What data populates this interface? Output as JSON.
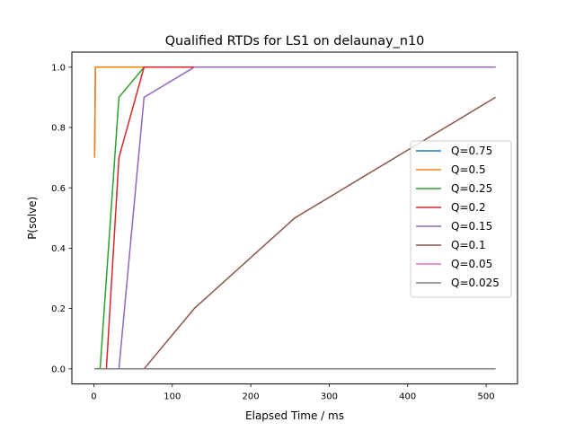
{
  "chart_data": {
    "type": "line",
    "title": "Qualified RTDs for LS1 on delaunay_n10",
    "xlabel": "Elapsed Time / ms",
    "ylabel": "P(solve)",
    "xlim": [
      -28,
      540
    ],
    "ylim": [
      -0.05,
      1.05
    ],
    "xticks": [
      0,
      100,
      200,
      300,
      400,
      500
    ],
    "xtick_labels": [
      "0",
      "100",
      "200",
      "300",
      "400",
      "500"
    ],
    "yticks": [
      0.0,
      0.2,
      0.4,
      0.6,
      0.8,
      1.0
    ],
    "ytick_labels": [
      "0.0",
      "0.2",
      "0.4",
      "0.6",
      "0.8",
      "1.0"
    ],
    "grid": false,
    "legend_position": "center-right",
    "series": [
      {
        "name": "Q=0.75",
        "color": "#1f77b4",
        "x": [
          1,
          2,
          4,
          512
        ],
        "y": [
          0.7,
          1.0,
          1.0,
          1.0
        ]
      },
      {
        "name": "Q=0.5",
        "color": "#ff7f0e",
        "x": [
          1,
          2,
          4,
          512
        ],
        "y": [
          0.7,
          1.0,
          1.0,
          1.0
        ]
      },
      {
        "name": "Q=0.25",
        "color": "#2ca02c",
        "x": [
          1,
          2,
          4,
          8,
          16,
          32,
          64,
          128,
          256,
          512
        ],
        "y": [
          0.0,
          0.0,
          0.0,
          0.0,
          0.3,
          0.9,
          1.0,
          1.0,
          1.0,
          1.0
        ]
      },
      {
        "name": "Q=0.2",
        "color": "#d62728",
        "x": [
          1,
          2,
          4,
          8,
          16,
          32,
          64,
          128,
          256,
          512
        ],
        "y": [
          0.0,
          0.0,
          0.0,
          0.0,
          0.0,
          0.7,
          1.0,
          1.0,
          1.0,
          1.0
        ]
      },
      {
        "name": "Q=0.15",
        "color": "#9467bd",
        "x": [
          1,
          2,
          4,
          8,
          16,
          32,
          64,
          128,
          256,
          512
        ],
        "y": [
          0.0,
          0.0,
          0.0,
          0.0,
          0.0,
          0.0,
          0.9,
          1.0,
          1.0,
          1.0
        ]
      },
      {
        "name": "Q=0.1",
        "color": "#8c564b",
        "x": [
          1,
          2,
          4,
          8,
          16,
          32,
          64,
          128,
          256,
          512
        ],
        "y": [
          0.0,
          0.0,
          0.0,
          0.0,
          0.0,
          0.0,
          0.0,
          0.2,
          0.5,
          0.9
        ]
      },
      {
        "name": "Q=0.05",
        "color": "#e377c2",
        "x": [
          1,
          512
        ],
        "y": [
          0.0,
          0.0
        ]
      },
      {
        "name": "Q=0.025",
        "color": "#7f7f7f",
        "x": [
          1,
          512
        ],
        "y": [
          0.0,
          0.0
        ]
      }
    ]
  }
}
